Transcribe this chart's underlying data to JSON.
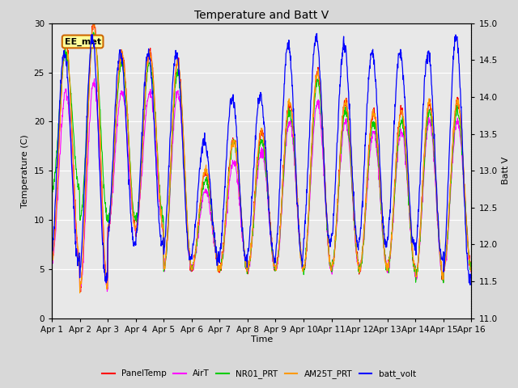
{
  "title": "Temperature and Batt V",
  "xlabel": "Time",
  "ylabel_left": "Temperature (C)",
  "ylabel_right": "Batt V",
  "annotation": "EE_met",
  "xlim_days": [
    0,
    15
  ],
  "ylim_left": [
    0,
    30
  ],
  "ylim_right": [
    11.0,
    15.0
  ],
  "xtick_labels": [
    "Apr 1",
    "Apr 2",
    "Apr 3",
    "Apr 4",
    "Apr 5",
    "Apr 6",
    "Apr 7",
    "Apr 8",
    "Apr 9",
    "Apr 10",
    "Apr 11",
    "Apr 12",
    "Apr 13",
    "Apr 14",
    "Apr 15",
    "Apr 16"
  ],
  "yticks_left": [
    0,
    5,
    10,
    15,
    20,
    25,
    30
  ],
  "yticks_right": [
    11.0,
    11.5,
    12.0,
    12.5,
    13.0,
    13.5,
    14.0,
    14.5,
    15.0
  ],
  "series_colors": {
    "PanelTemp": "#ff0000",
    "AirT": "#ff00ff",
    "NR01_PRT": "#00cc00",
    "AM25T_PRT": "#ff9900",
    "batt_volt": "#0000ff"
  },
  "legend_entries": [
    "PanelTemp",
    "AirT",
    "NR01_PRT",
    "AM25T_PRT",
    "batt_volt"
  ],
  "fig_bg_color": "#d8d8d8",
  "plot_bg_color": "#e8e8e8",
  "grid_color": "#ffffff",
  "annotation_bg": "#ffff99",
  "annotation_border": "#cc6600",
  "n_days": 15,
  "pts_per_day": 96,
  "day_peaks_panel": [
    28,
    30,
    27,
    27,
    26,
    15,
    18,
    19,
    22,
    25,
    22,
    21,
    21,
    22,
    22
  ],
  "day_mins_panel": [
    6,
    3,
    9,
    9,
    5,
    5,
    5,
    5,
    5,
    5,
    5,
    5,
    5,
    4,
    5
  ],
  "day_peaks_air": [
    23,
    24,
    23,
    23,
    23,
    13,
    16,
    17,
    20,
    22,
    20,
    19,
    19,
    20,
    20
  ],
  "day_mins_air": [
    6,
    3,
    9,
    9,
    5,
    5,
    5,
    5,
    5,
    5,
    5,
    5,
    5,
    4,
    5
  ],
  "day_peaks_nr01": [
    27,
    29,
    26,
    26,
    25,
    14,
    18,
    18,
    21,
    24,
    21,
    20,
    20,
    21,
    21
  ],
  "day_mins_nr01": [
    13,
    10,
    10,
    10,
    5,
    5,
    5,
    5,
    5,
    5,
    5,
    5,
    5,
    4,
    5
  ],
  "day_peaks_am25": [
    28,
    30,
    27,
    27,
    26,
    15,
    18,
    19,
    22,
    25,
    22,
    21,
    21,
    22,
    22
  ],
  "day_mins_am25": [
    6,
    3,
    9,
    9,
    5,
    5,
    5,
    5,
    5,
    5,
    5,
    5,
    5,
    4,
    5
  ],
  "day_batt_peaks": [
    14.6,
    14.8,
    14.6,
    14.6,
    14.6,
    13.4,
    14.0,
    14.0,
    14.7,
    14.8,
    14.7,
    14.6,
    14.6,
    14.6,
    14.8
  ],
  "day_batt_mins": [
    11.8,
    11.5,
    12.0,
    12.0,
    11.8,
    11.8,
    11.8,
    11.8,
    11.8,
    12.0,
    12.0,
    12.0,
    12.0,
    11.8,
    11.5
  ]
}
